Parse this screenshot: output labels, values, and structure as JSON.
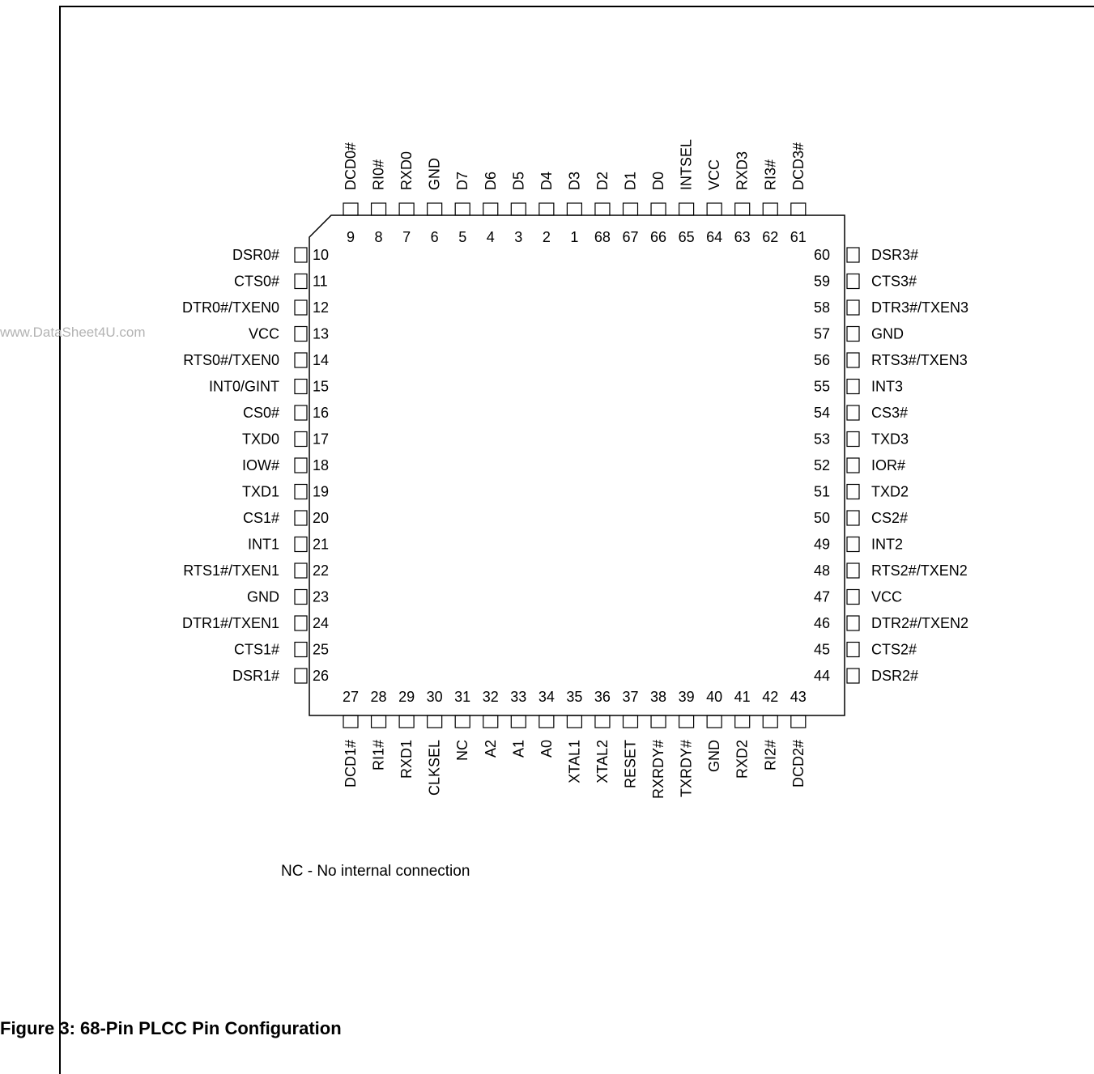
{
  "watermark": "www.DataSheet4U.com",
  "note": "NC - No internal connection",
  "caption": "Figure 3:   68-Pin PLCC Pin Configuration",
  "pins": {
    "top": [
      {
        "num": "9",
        "name": "DCD0#"
      },
      {
        "num": "8",
        "name": "RI0#"
      },
      {
        "num": "7",
        "name": "RXD0"
      },
      {
        "num": "6",
        "name": "GND"
      },
      {
        "num": "5",
        "name": "D7"
      },
      {
        "num": "4",
        "name": "D6"
      },
      {
        "num": "3",
        "name": "D5"
      },
      {
        "num": "2",
        "name": "D4"
      },
      {
        "num": "1",
        "name": "D3"
      },
      {
        "num": "68",
        "name": "D2"
      },
      {
        "num": "67",
        "name": "D1"
      },
      {
        "num": "66",
        "name": "D0"
      },
      {
        "num": "65",
        "name": "INTSEL"
      },
      {
        "num": "64",
        "name": "VCC"
      },
      {
        "num": "63",
        "name": "RXD3"
      },
      {
        "num": "62",
        "name": "RI3#"
      },
      {
        "num": "61",
        "name": "DCD3#"
      }
    ],
    "left": [
      {
        "num": "10",
        "name": "DSR0#"
      },
      {
        "num": "11",
        "name": "CTS0#"
      },
      {
        "num": "12",
        "name": "DTR0#/TXEN0"
      },
      {
        "num": "13",
        "name": "VCC"
      },
      {
        "num": "14",
        "name": "RTS0#/TXEN0"
      },
      {
        "num": "15",
        "name": "INT0/GINT"
      },
      {
        "num": "16",
        "name": "CS0#"
      },
      {
        "num": "17",
        "name": "TXD0"
      },
      {
        "num": "18",
        "name": "IOW#"
      },
      {
        "num": "19",
        "name": "TXD1"
      },
      {
        "num": "20",
        "name": "CS1#"
      },
      {
        "num": "21",
        "name": "INT1"
      },
      {
        "num": "22",
        "name": "RTS1#/TXEN1"
      },
      {
        "num": "23",
        "name": "GND"
      },
      {
        "num": "24",
        "name": "DTR1#/TXEN1"
      },
      {
        "num": "25",
        "name": "CTS1#"
      },
      {
        "num": "26",
        "name": "DSR1#"
      }
    ],
    "right": [
      {
        "num": "60",
        "name": "DSR3#"
      },
      {
        "num": "59",
        "name": "CTS3#"
      },
      {
        "num": "58",
        "name": "DTR3#/TXEN3"
      },
      {
        "num": "57",
        "name": "GND"
      },
      {
        "num": "56",
        "name": "RTS3#/TXEN3"
      },
      {
        "num": "55",
        "name": "INT3"
      },
      {
        "num": "54",
        "name": "CS3#"
      },
      {
        "num": "53",
        "name": "TXD3"
      },
      {
        "num": "52",
        "name": "IOR#"
      },
      {
        "num": "51",
        "name": "TXD2"
      },
      {
        "num": "50",
        "name": "CS2#"
      },
      {
        "num": "49",
        "name": "INT2"
      },
      {
        "num": "48",
        "name": "RTS2#/TXEN2"
      },
      {
        "num": "47",
        "name": "VCC"
      },
      {
        "num": "46",
        "name": "DTR2#/TXEN2"
      },
      {
        "num": "45",
        "name": "CTS2#"
      },
      {
        "num": "44",
        "name": "DSR2#"
      }
    ],
    "bottom": [
      {
        "num": "27",
        "name": "DCD1#"
      },
      {
        "num": "28",
        "name": "RI1#"
      },
      {
        "num": "29",
        "name": "RXD1"
      },
      {
        "num": "30",
        "name": "CLKSEL"
      },
      {
        "num": "31",
        "name": "NC"
      },
      {
        "num": "32",
        "name": "A2"
      },
      {
        "num": "33",
        "name": "A1"
      },
      {
        "num": "34",
        "name": "A0"
      },
      {
        "num": "35",
        "name": "XTAL1"
      },
      {
        "num": "36",
        "name": "XTAL2"
      },
      {
        "num": "37",
        "name": "RESET"
      },
      {
        "num": "38",
        "name": "RXRDY#"
      },
      {
        "num": "39",
        "name": "TXRDY#"
      },
      {
        "num": "40",
        "name": "GND"
      },
      {
        "num": "41",
        "name": "RXD2"
      },
      {
        "num": "42",
        "name": "RI2#"
      },
      {
        "num": "43",
        "name": "DCD2#"
      }
    ]
  }
}
